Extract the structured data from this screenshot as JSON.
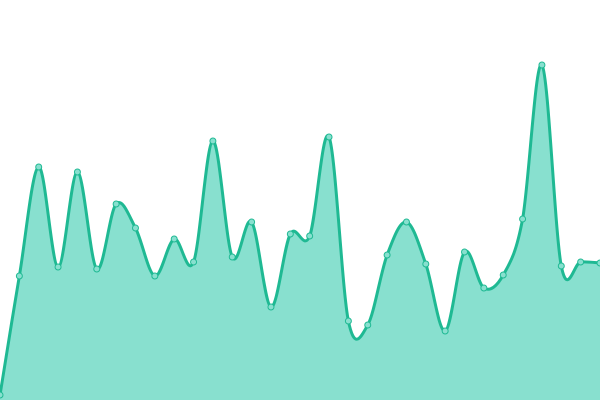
{
  "chart_data": {
    "type": "area",
    "categories": [
      null,
      null,
      null,
      null,
      null,
      null,
      null,
      null,
      null,
      null,
      null,
      null,
      null,
      null,
      null,
      null,
      null,
      null,
      null,
      null,
      null,
      null,
      null,
      null,
      null,
      null,
      null,
      null,
      null,
      null,
      null,
      null
    ],
    "values": [
      5,
      124,
      233,
      133,
      228,
      131,
      196,
      172,
      124,
      161,
      138,
      259,
      143,
      178,
      93,
      166,
      164,
      263,
      79,
      75,
      145,
      178,
      136,
      69,
      148,
      112,
      125,
      181,
      335,
      134,
      138,
      137
    ],
    "ylim": [
      0,
      400
    ],
    "color": "#1fb993",
    "fill": "#88e0cf"
  }
}
